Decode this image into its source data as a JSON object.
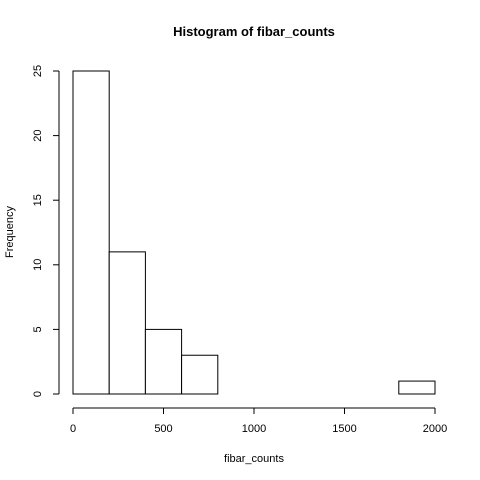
{
  "chart_data": {
    "type": "bar",
    "subtype": "histogram",
    "title": "Histogram of fibar_counts",
    "xlabel": "fibar_counts",
    "ylabel": "Frequency",
    "bins": [
      {
        "x0": 0,
        "x1": 200,
        "count": 25
      },
      {
        "x0": 200,
        "x1": 400,
        "count": 11
      },
      {
        "x0": 400,
        "x1": 600,
        "count": 5
      },
      {
        "x0": 600,
        "x1": 800,
        "count": 3
      },
      {
        "x0": 800,
        "x1": 1000,
        "count": 0
      },
      {
        "x0": 1000,
        "x1": 1200,
        "count": 0
      },
      {
        "x0": 1200,
        "x1": 1400,
        "count": 0
      },
      {
        "x0": 1400,
        "x1": 1600,
        "count": 0
      },
      {
        "x0": 1600,
        "x1": 1800,
        "count": 0
      },
      {
        "x0": 1800,
        "x1": 2000,
        "count": 1
      }
    ],
    "xlim": [
      0,
      2000
    ],
    "ylim": [
      0,
      25
    ],
    "xticks": [
      0,
      500,
      1000,
      1500,
      2000
    ],
    "yticks": [
      0,
      5,
      10,
      15,
      20,
      25
    ],
    "grid": false,
    "legend": "none"
  }
}
